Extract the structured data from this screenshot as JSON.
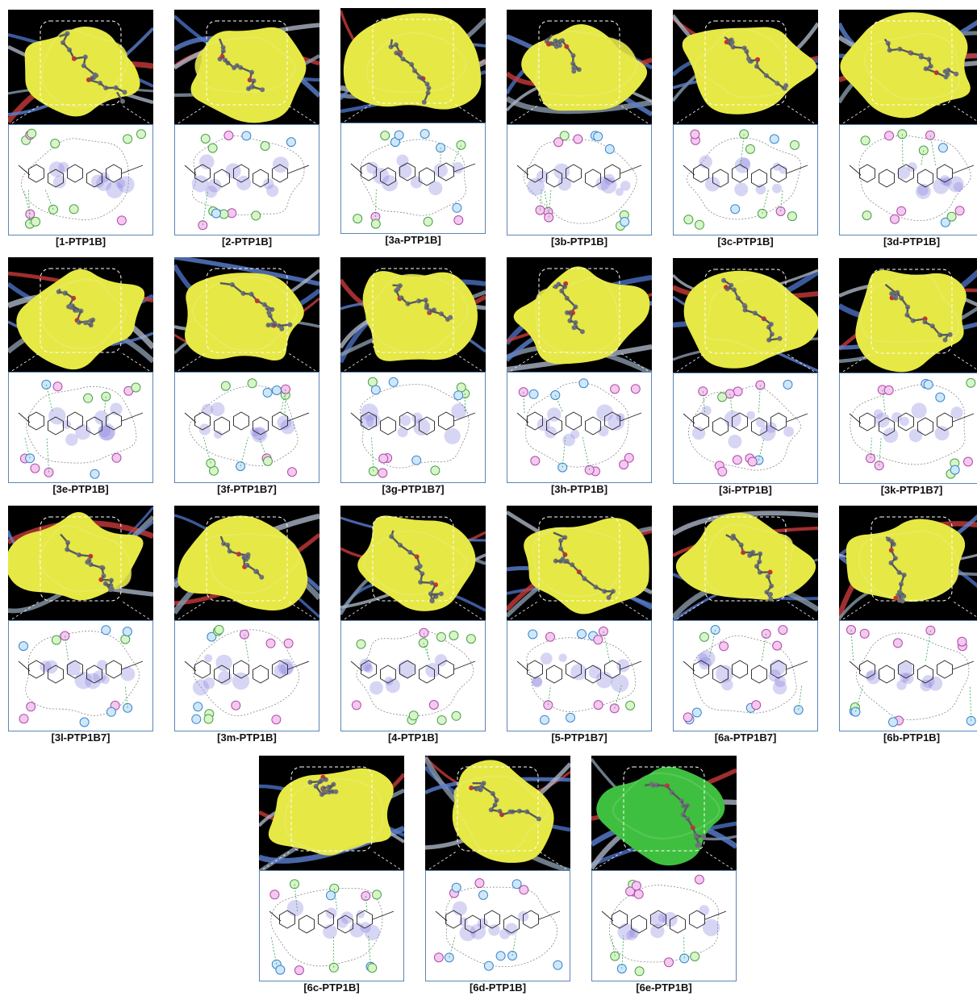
{
  "panels": [
    {
      "label": "[1-PTP1B]",
      "surface_color": "#e6e845"
    },
    {
      "label": "[2-PTP1B]",
      "surface_color": "#e6e845"
    },
    {
      "label": "[3a-PTP1B]",
      "surface_color": "#e6e845"
    },
    {
      "label": "[3b-PTP1B]",
      "surface_color": "#e6e845"
    },
    {
      "label": "[3c-PTP1B]",
      "surface_color": "#e6e845"
    },
    {
      "label": "[3d-PTP1B]",
      "surface_color": "#e6e845"
    },
    {
      "label": "[3e-PTP1B]",
      "surface_color": "#e6e845"
    },
    {
      "label": "[3f-PTP1B7]",
      "surface_color": "#e6e845"
    },
    {
      "label": "[3g-PTP1B7]",
      "surface_color": "#e6e845"
    },
    {
      "label": "[3h-PTP1B]",
      "surface_color": "#e6e845"
    },
    {
      "label": "[3i-PTP1B]",
      "surface_color": "#e6e845"
    },
    {
      "label": "[3k-PTP1B7]",
      "surface_color": "#e6e845"
    },
    {
      "label": "[3l-PTP1B7]",
      "surface_color": "#e6e845"
    },
    {
      "label": "[3m-PTP1B]",
      "surface_color": "#e6e845"
    },
    {
      "label": "[4-PTP1B]",
      "surface_color": "#e6e845"
    },
    {
      "label": "[5-PTP1B7]",
      "surface_color": "#e6e845"
    },
    {
      "label": "[6a-PTP1B7]",
      "surface_color": "#e6e845"
    },
    {
      "label": "[6b-PTP1B]",
      "surface_color": "#e6e845"
    },
    {
      "label": "[6c-PTP1B]",
      "surface_color": "#e6e845"
    },
    {
      "label": "[6d-PTP1B]",
      "surface_color": "#e6e845"
    },
    {
      "label": "[6e-PTP1B]",
      "surface_color": "#3fbf3f"
    }
  ]
}
